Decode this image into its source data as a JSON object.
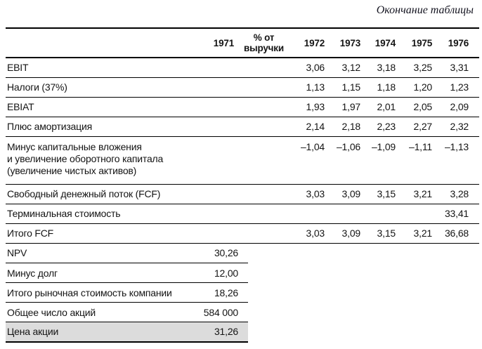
{
  "page": {
    "title": "Окончание таблицы"
  },
  "table": {
    "header": {
      "col_label": "",
      "col_1971": "1971",
      "col_pct": "% от\nвыручки",
      "years": [
        "1972",
        "1973",
        "1974",
        "1975",
        "1976"
      ]
    },
    "rows": [
      {
        "label": "EBIT",
        "values": [
          "3,06",
          "3,12",
          "3,18",
          "3,25",
          "3,31"
        ]
      },
      {
        "label": "Налоги (37%)",
        "values": [
          "1,13",
          "1,15",
          "1,18",
          "1,20",
          "1,23"
        ]
      },
      {
        "label": "EBIAT",
        "values": [
          "1,93",
          "1,97",
          "2,01",
          "2,05",
          "2,09"
        ]
      },
      {
        "label": "Плюс амортизация",
        "values": [
          "2,14",
          "2,18",
          "2,23",
          "2,27",
          "2,32"
        ]
      },
      {
        "label": "Минус капитальные вложения\nи увеличение оборотного капитала\n(увеличение чистых активов)",
        "values": [
          "–1,04",
          "–1,06",
          "–1,09",
          "–1,11",
          "–1,13"
        ]
      },
      {
        "label": "Свободный денежный поток (FCF)",
        "values": [
          "3,03",
          "3,09",
          "3,15",
          "3,21",
          "3,28"
        ]
      },
      {
        "label": "Терминальная стоимость",
        "values": [
          "",
          "",
          "",
          "",
          "33,41"
        ]
      },
      {
        "label": "Итого FCF",
        "values": [
          "3,03",
          "3,09",
          "3,15",
          "3,21",
          "36,68"
        ]
      }
    ],
    "summary_rows": [
      {
        "label": "NPV",
        "value": "30,26",
        "highlight": false
      },
      {
        "label": "Минус долг",
        "value": "12,00",
        "highlight": false
      },
      {
        "label": "Итого рыночная стоимость компании",
        "value": "18,26",
        "highlight": false
      },
      {
        "label": "Общее число акций",
        "value": "584 000",
        "highlight": false
      },
      {
        "label": "Цена акции",
        "value": "31,26",
        "highlight": true
      }
    ]
  },
  "colors": {
    "highlight_row": "#dcdcdc",
    "rule_line": "#000000",
    "text": "#141414"
  }
}
